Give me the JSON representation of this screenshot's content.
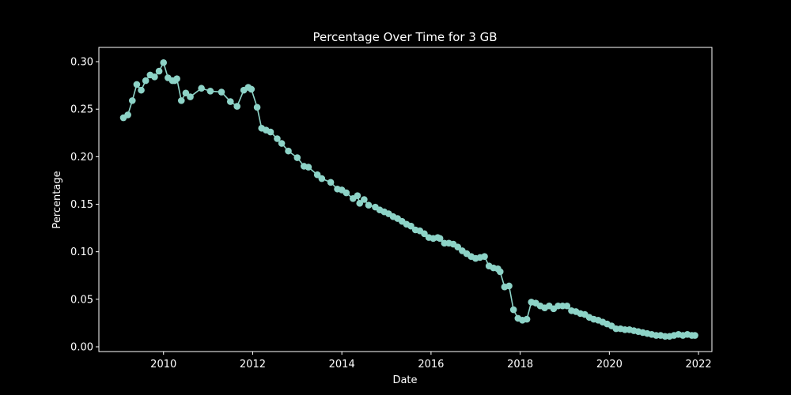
{
  "chart_data": {
    "type": "line",
    "title": "Percentage Over Time for 3 GB",
    "xlabel": "Date",
    "ylabel": "Percentage",
    "xlim": [
      2008.55,
      2022.3
    ],
    "ylim": [
      -0.005,
      0.315
    ],
    "x_ticks": [
      2010,
      2012,
      2014,
      2016,
      2018,
      2020,
      2022
    ],
    "y_ticks": [
      0.0,
      0.05,
      0.1,
      0.15,
      0.2,
      0.25,
      0.3
    ],
    "y_tick_labels": [
      "0.00",
      "0.05",
      "0.10",
      "0.15",
      "0.20",
      "0.25",
      "0.30"
    ],
    "grid": false,
    "series": [
      {
        "color": "#8dd3c7",
        "marker": "circle",
        "x": [
          2009.1,
          2009.2,
          2009.3,
          2009.4,
          2009.5,
          2009.6,
          2009.7,
          2009.8,
          2009.9,
          2010.0,
          2010.1,
          2010.2,
          2010.25,
          2010.3,
          2010.4,
          2010.5,
          2010.6,
          2010.85,
          2011.05,
          2011.3,
          2011.5,
          2011.65,
          2011.8,
          2011.9,
          2011.97,
          2012.1,
          2012.2,
          2012.3,
          2012.4,
          2012.55,
          2012.65,
          2012.8,
          2013.0,
          2013.15,
          2013.25,
          2013.45,
          2013.55,
          2013.75,
          2013.9,
          2014.0,
          2014.1,
          2014.25,
          2014.35,
          2014.4,
          2014.5,
          2014.6,
          2014.75,
          2014.85,
          2014.95,
          2015.05,
          2015.15,
          2015.25,
          2015.35,
          2015.45,
          2015.55,
          2015.65,
          2015.75,
          2015.85,
          2015.95,
          2016.05,
          2016.15,
          2016.2,
          2016.3,
          2016.4,
          2016.5,
          2016.6,
          2016.7,
          2016.8,
          2016.9,
          2017.0,
          2017.1,
          2017.2,
          2017.3,
          2017.4,
          2017.5,
          2017.55,
          2017.65,
          2017.75,
          2017.85,
          2017.95,
          2018.05,
          2018.15,
          2018.25,
          2018.35,
          2018.45,
          2018.55,
          2018.65,
          2018.75,
          2018.85,
          2018.95,
          2019.05,
          2019.15,
          2019.25,
          2019.35,
          2019.45,
          2019.55,
          2019.65,
          2019.75,
          2019.85,
          2019.95,
          2020.05,
          2020.15,
          2020.25,
          2020.35,
          2020.45,
          2020.55,
          2020.65,
          2020.75,
          2020.85,
          2020.95,
          2021.05,
          2021.15,
          2021.25,
          2021.35,
          2021.45,
          2021.55,
          2021.65,
          2021.75,
          2021.85,
          2021.92
        ],
        "y": [
          0.241,
          0.244,
          0.259,
          0.276,
          0.27,
          0.28,
          0.286,
          0.284,
          0.29,
          0.299,
          0.283,
          0.28,
          0.28,
          0.282,
          0.259,
          0.267,
          0.263,
          0.272,
          0.269,
          0.268,
          0.258,
          0.253,
          0.27,
          0.273,
          0.271,
          0.252,
          0.23,
          0.228,
          0.226,
          0.219,
          0.214,
          0.206,
          0.199,
          0.19,
          0.189,
          0.181,
          0.177,
          0.173,
          0.166,
          0.165,
          0.162,
          0.156,
          0.159,
          0.151,
          0.155,
          0.149,
          0.147,
          0.144,
          0.142,
          0.14,
          0.137,
          0.135,
          0.132,
          0.129,
          0.127,
          0.123,
          0.122,
          0.119,
          0.115,
          0.114,
          0.115,
          0.114,
          0.109,
          0.109,
          0.108,
          0.105,
          0.101,
          0.098,
          0.095,
          0.093,
          0.094,
          0.095,
          0.085,
          0.083,
          0.082,
          0.079,
          0.063,
          0.064,
          0.039,
          0.03,
          0.028,
          0.029,
          0.047,
          0.046,
          0.043,
          0.041,
          0.043,
          0.04,
          0.043,
          0.043,
          0.043,
          0.038,
          0.037,
          0.035,
          0.034,
          0.031,
          0.029,
          0.028,
          0.026,
          0.024,
          0.022,
          0.019,
          0.019,
          0.018,
          0.018,
          0.017,
          0.016,
          0.015,
          0.014,
          0.013,
          0.012,
          0.012,
          0.011,
          0.011,
          0.012,
          0.013,
          0.012,
          0.013,
          0.012,
          0.012
        ]
      }
    ]
  }
}
